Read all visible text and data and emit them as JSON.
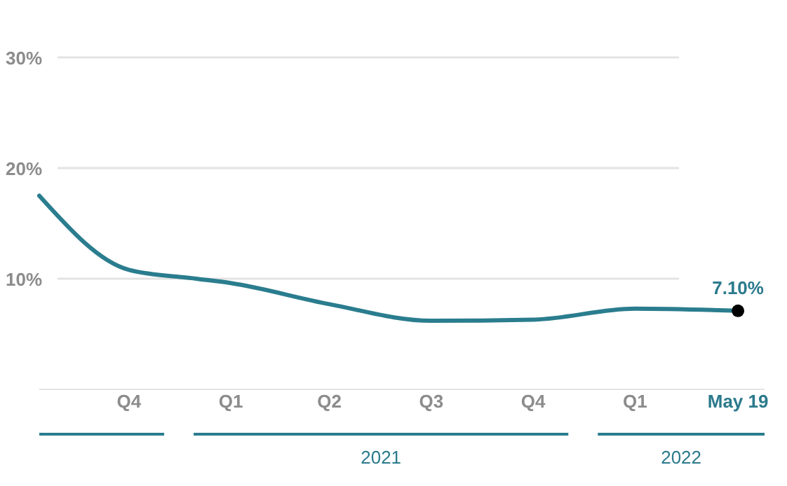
{
  "chart_data": {
    "type": "line",
    "x": [
      "2020-08-26",
      "2020-11-15",
      "2021-01-15",
      "2021-02-15",
      "2021-05-15",
      "2021-08-15",
      "2021-11-15",
      "2022-02-15",
      "2022-05-19"
    ],
    "series": [
      {
        "color": "#2a7d8e",
        "values": [
          17.5,
          10.8,
          10.0,
          9.6,
          7.7,
          6.2,
          6.3,
          7.3,
          7.1
        ],
        "value_labels": [
          null,
          null,
          null,
          null,
          null,
          null,
          null,
          null,
          "7.10%"
        ]
      }
    ],
    "xticks": [
      {
        "value": "2020-11-15",
        "label": "Q4"
      },
      {
        "value": "2021-02-15",
        "label": "Q1"
      },
      {
        "value": "2021-05-15",
        "label": "Q2"
      },
      {
        "value": "2021-08-15",
        "label": "Q3"
      },
      {
        "value": "2021-11-15",
        "label": "Q4"
      },
      {
        "value": "2022-02-15",
        "label": "Q1"
      },
      {
        "value": "2022-05-19",
        "label": "May 19"
      }
    ],
    "yticks": [
      {
        "value": 10,
        "label": "10%"
      },
      {
        "value": 20,
        "label": "20%"
      },
      {
        "value": 30,
        "label": "30%"
      }
    ],
    "xlim": [
      "2020-08-26",
      "2022-06-12"
    ],
    "ylim": [
      0,
      30
    ],
    "annotations": [
      "2021",
      "2022"
    ],
    "grid": "y",
    "marker": "none",
    "line_style": "solid"
  }
}
